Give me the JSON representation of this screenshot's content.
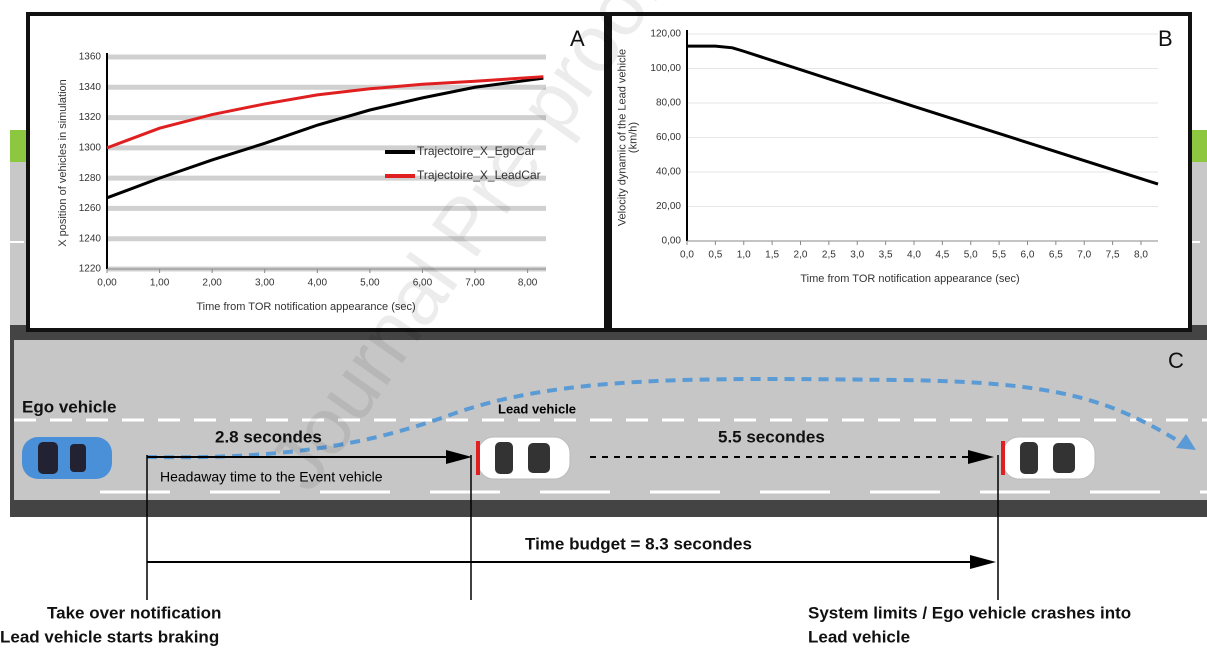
{
  "chart_data": [
    {
      "type": "line",
      "panel": "A",
      "xlabel": "Time from TOR notification appearance (sec)",
      "ylabel": "X position of vehicles in simulation",
      "x": [
        0,
        1,
        2,
        3,
        4,
        5,
        6,
        7,
        8.3
      ],
      "series": [
        {
          "name": "Trajectoire_X_EgoCar",
          "color": "#000000",
          "values": [
            1267,
            1280,
            1292,
            1303,
            1315,
            1325,
            1333,
            1340,
            1346
          ]
        },
        {
          "name": "Trajectoire_X_LeadCar",
          "color": "#e02020",
          "values": [
            1300,
            1313,
            1322,
            1329,
            1335,
            1339,
            1342,
            1344,
            1347
          ]
        }
      ],
      "xlim": [
        0,
        8.35
      ],
      "ylim": [
        1220,
        1360
      ],
      "xticks": [
        {
          "value": 0,
          "label": "0,00"
        },
        {
          "value": 1,
          "label": "1,00"
        },
        {
          "value": 2,
          "label": "2,00"
        },
        {
          "value": 3,
          "label": "3,00"
        },
        {
          "value": 4,
          "label": "4,00"
        },
        {
          "value": 5,
          "label": "5,00"
        },
        {
          "value": 6,
          "label": "6,00"
        },
        {
          "value": 7,
          "label": "7,00"
        },
        {
          "value": 8,
          "label": "8,00"
        }
      ],
      "yticks": [
        1220,
        1240,
        1260,
        1280,
        1300,
        1320,
        1340,
        1360
      ],
      "grid": true,
      "legend": "right"
    },
    {
      "type": "line",
      "panel": "B",
      "xlabel": "Time from TOR notification appearance (sec)",
      "ylabel": [
        "Velocity dynamic of the  Lead vehicle",
        "(km/h)"
      ],
      "x": [
        0,
        0.5,
        0.8,
        1.0,
        4.0,
        8.3
      ],
      "values": [
        113,
        113,
        112,
        110,
        78,
        33
      ],
      "color": "#000000",
      "xlim": [
        0,
        8.3
      ],
      "ylim": [
        0,
        120
      ],
      "xticks": [
        {
          "value": 0,
          "label": "0,0"
        },
        {
          "value": 0.5,
          "label": "0,5"
        },
        {
          "value": 1,
          "label": "1,0"
        },
        {
          "value": 1.5,
          "label": "1,5"
        },
        {
          "value": 2,
          "label": "2,0"
        },
        {
          "value": 2.5,
          "label": "2,5"
        },
        {
          "value": 3,
          "label": "3,0"
        },
        {
          "value": 3.5,
          "label": "3,5"
        },
        {
          "value": 4,
          "label": "4,0"
        },
        {
          "value": 4.5,
          "label": "4,5"
        },
        {
          "value": 5,
          "label": "5,0"
        },
        {
          "value": 5.5,
          "label": "5,5"
        },
        {
          "value": 6,
          "label": "6,0"
        },
        {
          "value": 6.5,
          "label": "6,5"
        },
        {
          "value": 7,
          "label": "7,0"
        },
        {
          "value": 7.5,
          "label": "7,5"
        },
        {
          "value": 8,
          "label": "8,0"
        }
      ],
      "yticks": [
        {
          "value": 0,
          "label": "0,00"
        },
        {
          "value": 20,
          "label": "20,00"
        },
        {
          "value": 40,
          "label": "40,00"
        },
        {
          "value": 60,
          "label": "60,00"
        },
        {
          "value": 80,
          "label": "80,00"
        },
        {
          "value": 100,
          "label": "100,00"
        },
        {
          "value": 120,
          "label": "120,00"
        }
      ],
      "grid": true
    }
  ],
  "diagram": {
    "panel": "C",
    "ego": "Ego vehicle",
    "lead": "Lead vehicle",
    "gap1": "2.8 secondes",
    "gap2": "5.5 secondes",
    "headway": "Headaway time to the Event vehicle",
    "budget": "Time budget = 8.3 secondes",
    "start": [
      "Take over notification",
      "Lead vehicle starts braking"
    ],
    "end": [
      "System limits / Ego vehicle crashes into",
      "Lead vehicle"
    ]
  },
  "watermark": "Journal Pre-proof"
}
